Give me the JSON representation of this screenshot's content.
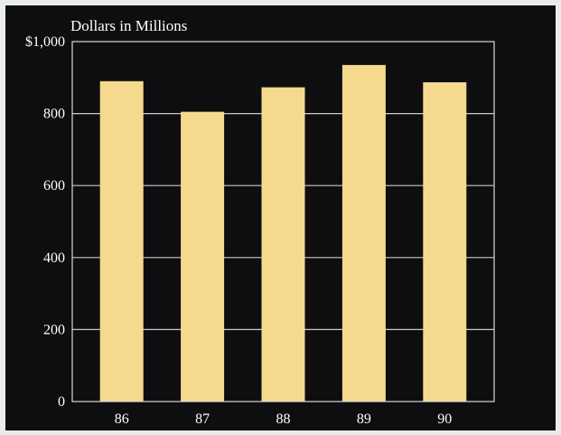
{
  "chart_data": {
    "type": "bar",
    "title": "",
    "unit_label": "Dollars in Millions",
    "xlabel": "",
    "ylabel": "",
    "categories": [
      "86",
      "87",
      "88",
      "89",
      "90"
    ],
    "values": [
      890,
      805,
      873,
      935,
      887
    ],
    "ylim": [
      0,
      1000
    ],
    "yticks": [
      0,
      200,
      400,
      600,
      800,
      1000
    ],
    "ytick_labels": [
      "0",
      "200",
      "400",
      "600",
      "800",
      "$1,000"
    ],
    "grid": true,
    "legend": "none",
    "colors": {
      "bar": "#f5d98f",
      "background": "#0e0d0f",
      "grid": "#c9c9c9",
      "frame": "#d8d8d8",
      "text": "#ffffff"
    }
  }
}
